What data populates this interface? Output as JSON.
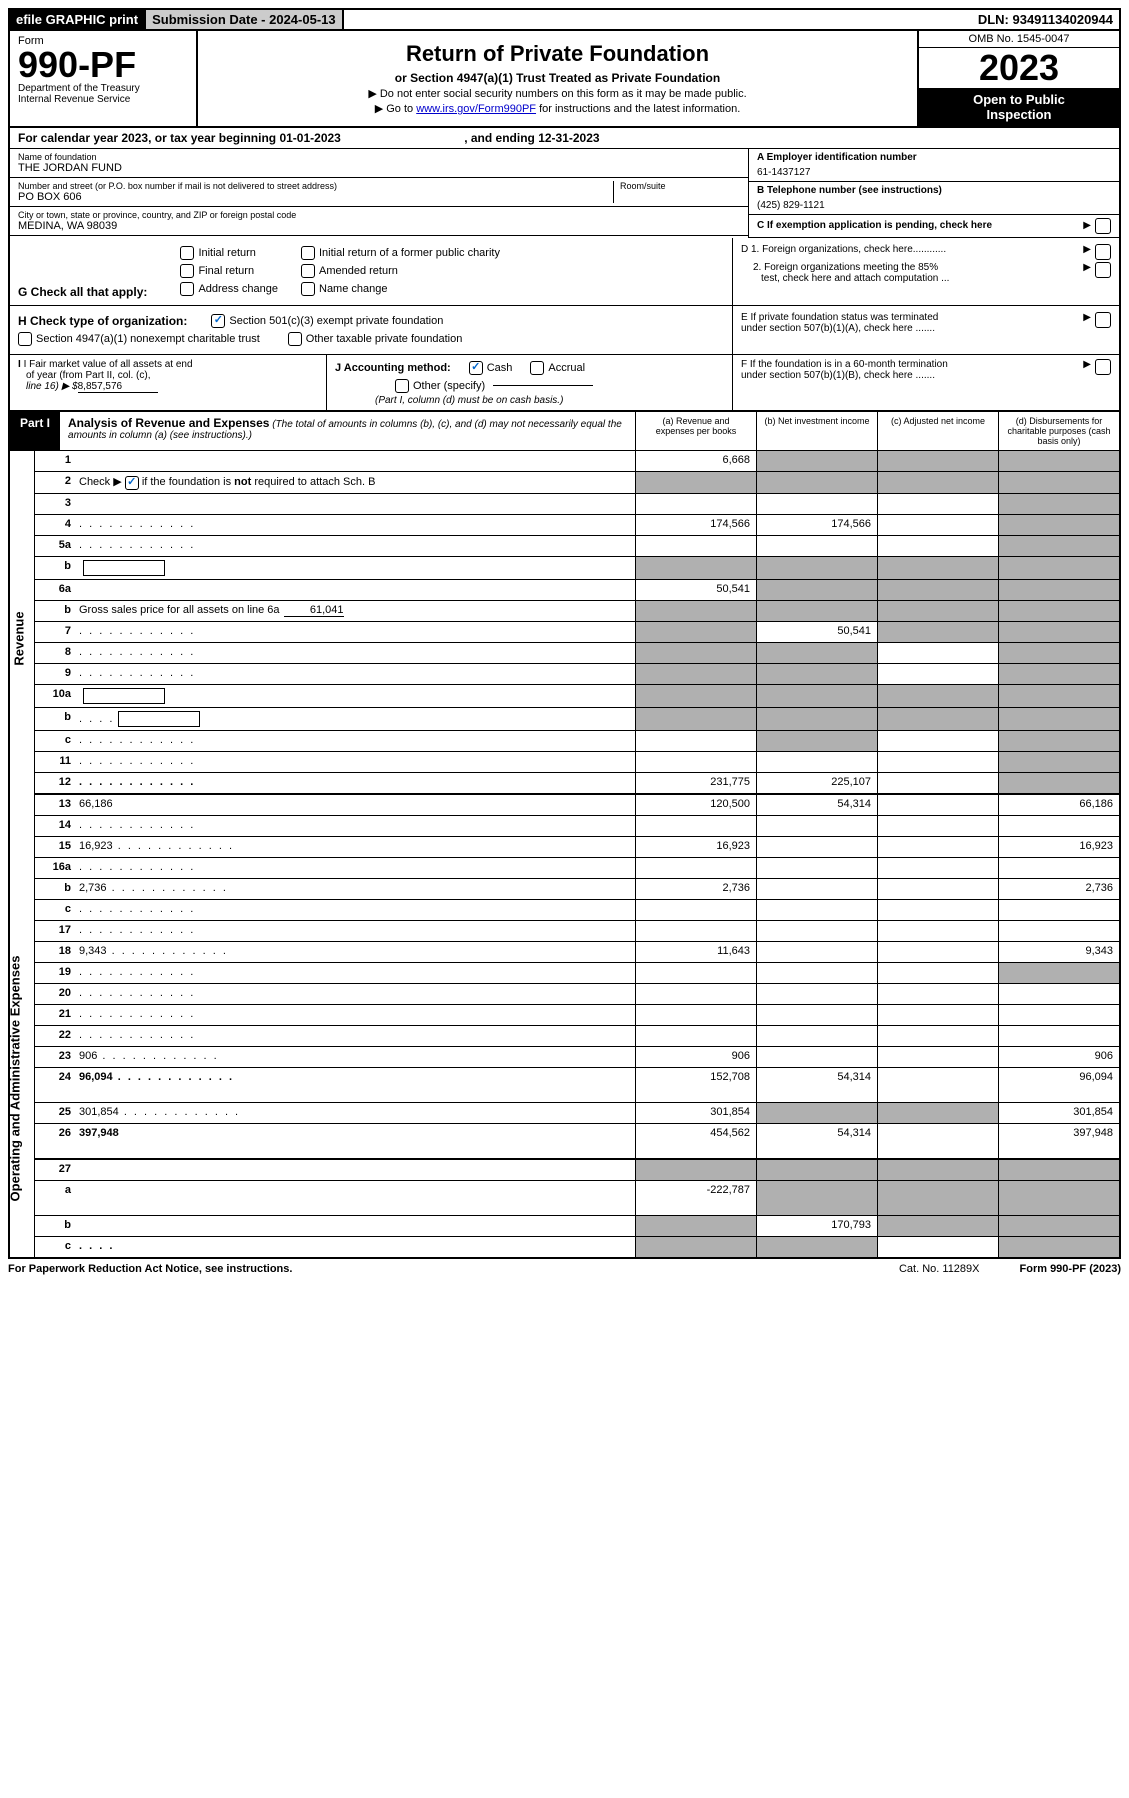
{
  "topbar": {
    "efile": "efile GRAPHIC print",
    "subdate_label": "Submission Date - ",
    "subdate": "2024-05-13",
    "dln_label": "DLN: ",
    "dln": "93491134020944"
  },
  "header": {
    "form_word": "Form",
    "form_no": "990-PF",
    "dept1": "Department of the Treasury",
    "dept2": "Internal Revenue Service",
    "title": "Return of Private Foundation",
    "subtitle": "or Section 4947(a)(1) Trust Treated as Private Foundation",
    "instr1": "▶ Do not enter social security numbers on this form as it may be made public.",
    "instr2_pre": "▶ Go to ",
    "instr2_link": "www.irs.gov/Form990PF",
    "instr2_post": " for instructions and the latest information.",
    "omb": "OMB No. 1545-0047",
    "year": "2023",
    "open1": "Open to Public",
    "open2": "Inspection"
  },
  "calyear": {
    "pre": "For calendar year 2023, or tax year beginning ",
    "begin": "01-01-2023",
    "mid": " , and ending ",
    "end": "12-31-2023"
  },
  "info": {
    "name_label": "Name of foundation",
    "name": "THE JORDAN FUND",
    "addr_label": "Number and street (or P.O. box number if mail is not delivered to street address)",
    "addr": "PO BOX 606",
    "room_label": "Room/suite",
    "city_label": "City or town, state or province, country, and ZIP or foreign postal code",
    "city": "MEDINA, WA  98039",
    "a_label": "A Employer identification number",
    "a_val": "61-1437127",
    "b_label": "B Telephone number (see instructions)",
    "b_val": "(425) 829-1121",
    "c_label": "C If exemption application is pending, check here",
    "d1": "D 1. Foreign organizations, check here............",
    "d2a": "2. Foreign organizations meeting the 85%",
    "d2b": "test, check here and attach computation ...",
    "e1": "E  If private foundation status was terminated",
    "e2": "under section 507(b)(1)(A), check here .......",
    "f1": "F  If the foundation is in a 60-month termination",
    "f2": "under section 507(b)(1)(B), check here ......."
  },
  "g": {
    "label": "G Check all that apply:",
    "opt1": "Initial return",
    "opt2": "Final return",
    "opt3": "Address change",
    "opt4": "Initial return of a former public charity",
    "opt5": "Amended return",
    "opt6": "Name change"
  },
  "h": {
    "label": "H Check type of organization:",
    "opt1": "Section 501(c)(3) exempt private foundation",
    "opt2": "Section 4947(a)(1) nonexempt charitable trust",
    "opt3": "Other taxable private foundation"
  },
  "i": {
    "label1": "I Fair market value of all assets at end",
    "label2": "of year (from Part II, col. (c),",
    "label3": "line 16) ▶ $",
    "val": "8,857,576"
  },
  "j": {
    "label": "J Accounting method:",
    "cash": "Cash",
    "accrual": "Accrual",
    "other": "Other (specify)",
    "note": "(Part I, column (d) must be on cash basis.)"
  },
  "part1": {
    "label": "Part I",
    "title": "Analysis of Revenue and Expenses",
    "note": " (The total of amounts in columns (b), (c), and (d) may not necessarily equal the amounts in column (a) (see instructions).)",
    "col_a": "(a)   Revenue and expenses per books",
    "col_b": "(b)   Net investment income",
    "col_c": "(c)   Adjusted net income",
    "col_d": "(d)   Disbursements for charitable purposes (cash basis only)"
  },
  "side": {
    "revenue": "Revenue",
    "opex": "Operating and Administrative Expenses"
  },
  "rows": [
    {
      "n": "1",
      "d": "",
      "a": "6,668",
      "b": "",
      "c": "",
      "shade_b": true,
      "shade_c": true,
      "shade_d": true
    },
    {
      "n": "2",
      "d_pre": "Check ▶ ",
      "d_post": " if the foundation is ",
      "d_bold": "not",
      "d_post2": " required to attach Sch. B",
      "a": "",
      "b": "",
      "c": "",
      "d": "",
      "shade_a": true,
      "shade_b": true,
      "shade_c": true,
      "shade_d": true,
      "check": true
    },
    {
      "n": "3",
      "d": "",
      "a": "",
      "b": "",
      "c": "",
      "shade_d": true
    },
    {
      "n": "4",
      "d": "",
      "a": "174,566",
      "b": "174,566",
      "c": "",
      "shade_d": true,
      "dots": true
    },
    {
      "n": "5a",
      "d": "",
      "a": "",
      "b": "",
      "c": "",
      "shade_d": true,
      "dots": true
    },
    {
      "n": "b",
      "d": "",
      "a": "",
      "b": "",
      "c": "",
      "shade_a": true,
      "shade_b": true,
      "shade_c": true,
      "shade_d": true,
      "inline_box": true
    },
    {
      "n": "6a",
      "d": "",
      "a": "50,541",
      "b": "",
      "c": "",
      "shade_b": true,
      "shade_c": true,
      "shade_d": true
    },
    {
      "n": "b",
      "d_pre": "Gross sales price for all assets on line 6a",
      "d_val": "61,041",
      "a": "",
      "b": "",
      "c": "",
      "d": "",
      "shade_a": true,
      "shade_b": true,
      "shade_c": true,
      "shade_d": true,
      "underline": true
    },
    {
      "n": "7",
      "d": "",
      "a": "",
      "b": "50,541",
      "c": "",
      "shade_a": true,
      "shade_c": true,
      "shade_d": true,
      "dots": true
    },
    {
      "n": "8",
      "d": "",
      "a": "",
      "b": "",
      "c": "",
      "shade_a": true,
      "shade_b": true,
      "shade_d": true,
      "dots": true
    },
    {
      "n": "9",
      "d": "",
      "a": "",
      "b": "",
      "c": "",
      "shade_a": true,
      "shade_b": true,
      "shade_d": true,
      "dots": true
    },
    {
      "n": "10a",
      "d": "",
      "a": "",
      "b": "",
      "c": "",
      "shade_a": true,
      "shade_b": true,
      "shade_c": true,
      "shade_d": true,
      "inline_box": true
    },
    {
      "n": "b",
      "d": "",
      "a": "",
      "b": "",
      "c": "",
      "shade_a": true,
      "shade_b": true,
      "shade_c": true,
      "shade_d": true,
      "inline_box": true,
      "dots_s": true
    },
    {
      "n": "c",
      "d": "",
      "a": "",
      "b": "",
      "c": "",
      "shade_b": true,
      "shade_d": true,
      "dots": true
    },
    {
      "n": "11",
      "d": "",
      "a": "",
      "b": "",
      "c": "",
      "shade_d": true,
      "dots": true
    },
    {
      "n": "12",
      "d": "",
      "a": "231,775",
      "b": "225,107",
      "c": "",
      "bold": true,
      "shade_d": true,
      "dots": true
    }
  ],
  "rows2": [
    {
      "n": "13",
      "d": "66,186",
      "a": "120,500",
      "b": "54,314",
      "c": ""
    },
    {
      "n": "14",
      "d": "",
      "a": "",
      "b": "",
      "c": "",
      "dots": true
    },
    {
      "n": "15",
      "d": "16,923",
      "a": "16,923",
      "b": "",
      "c": "",
      "dots": true
    },
    {
      "n": "16a",
      "d": "",
      "a": "",
      "b": "",
      "c": "",
      "dots": true
    },
    {
      "n": "b",
      "d": "2,736",
      "a": "2,736",
      "b": "",
      "c": "",
      "dots": true
    },
    {
      "n": "c",
      "d": "",
      "a": "",
      "b": "",
      "c": "",
      "dots": true
    },
    {
      "n": "17",
      "d": "",
      "a": "",
      "b": "",
      "c": "",
      "dots": true
    },
    {
      "n": "18",
      "d": "9,343",
      "a": "11,643",
      "b": "",
      "c": "",
      "dots": true
    },
    {
      "n": "19",
      "d": "",
      "a": "",
      "b": "",
      "c": "",
      "shade_d": true,
      "dots": true
    },
    {
      "n": "20",
      "d": "",
      "a": "",
      "b": "",
      "c": "",
      "dots": true
    },
    {
      "n": "21",
      "d": "",
      "a": "",
      "b": "",
      "c": "",
      "dots": true
    },
    {
      "n": "22",
      "d": "",
      "a": "",
      "b": "",
      "c": "",
      "dots": true
    },
    {
      "n": "23",
      "d": "906",
      "a": "906",
      "b": "",
      "c": "",
      "dots": true
    },
    {
      "n": "24",
      "d": "96,094",
      "a": "152,708",
      "b": "54,314",
      "c": "",
      "bold": true,
      "dots": true,
      "tall": true
    },
    {
      "n": "25",
      "d": "301,854",
      "a": "301,854",
      "b": "",
      "c": "",
      "shade_b": true,
      "shade_c": true,
      "dots": true
    },
    {
      "n": "26",
      "d": "397,948",
      "a": "454,562",
      "b": "54,314",
      "c": "",
      "bold": true,
      "tall": true
    }
  ],
  "rows3": [
    {
      "n": "27",
      "d": "",
      "a": "",
      "b": "",
      "c": "",
      "shade_a": true,
      "shade_b": true,
      "shade_c": true,
      "shade_d": true
    },
    {
      "n": "a",
      "d": "",
      "a": "-222,787",
      "b": "",
      "c": "",
      "bold": true,
      "shade_b": true,
      "shade_c": true,
      "shade_d": true,
      "tall": true
    },
    {
      "n": "b",
      "d": "",
      "a": "",
      "b": "170,793",
      "c": "",
      "bold": true,
      "shade_a": true,
      "shade_c": true,
      "shade_d": true
    },
    {
      "n": "c",
      "d": "",
      "a": "",
      "b": "",
      "c": "",
      "bold": true,
      "shade_a": true,
      "shade_b": true,
      "shade_d": true,
      "dots_s": true
    }
  ],
  "footer": {
    "left": "For Paperwork Reduction Act Notice, see instructions.",
    "mid": "Cat. No. 11289X",
    "right": "Form 990-PF (2023)"
  },
  "colors": {
    "link": "#0000cc",
    "check": "#0066cc",
    "shade": "#b0b0b0",
    "gray": "#cccccc"
  }
}
